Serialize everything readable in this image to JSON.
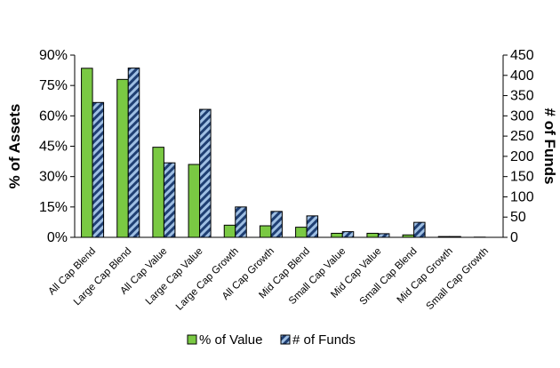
{
  "chart_data": {
    "type": "bar",
    "title": "",
    "categories": [
      "All Cap Blend",
      "Large Cap Blend",
      "All Cap Value",
      "Large Cap Value",
      "Large Cap Growth",
      "All Cap Growth",
      "Mid Cap Blend",
      "Small Cap Value",
      "Mid Cap Value",
      "Small Cap Blend",
      "Mid Cap Growth",
      "Small Cap Growth"
    ],
    "series": [
      {
        "name": "% of Value",
        "axis": "left",
        "unit": "%",
        "color": "#7ac943",
        "values": [
          83.5,
          78,
          44.5,
          36,
          6,
          5.7,
          5,
          2,
          2,
          1.2,
          0.4,
          0.1
        ]
      },
      {
        "name": "# of Funds",
        "axis": "right",
        "color": "#8fb2dd",
        "pattern": "diagonal-hatch",
        "values": [
          333,
          418,
          184,
          316,
          75,
          64,
          53,
          14,
          9,
          37,
          2,
          0
        ]
      }
    ],
    "ylabel": "% of Assets",
    "ylim": [
      0,
      90
    ],
    "yticks": [
      "0%",
      "15%",
      "30%",
      "45%",
      "60%",
      "75%",
      "90%"
    ],
    "y2label": "# of Funds",
    "y2lim": [
      0,
      450
    ],
    "y2ticks": [
      "0",
      "50",
      "100",
      "150",
      "200",
      "250",
      "300",
      "350",
      "400",
      "450"
    ],
    "grid": false,
    "legend": "bottom"
  }
}
